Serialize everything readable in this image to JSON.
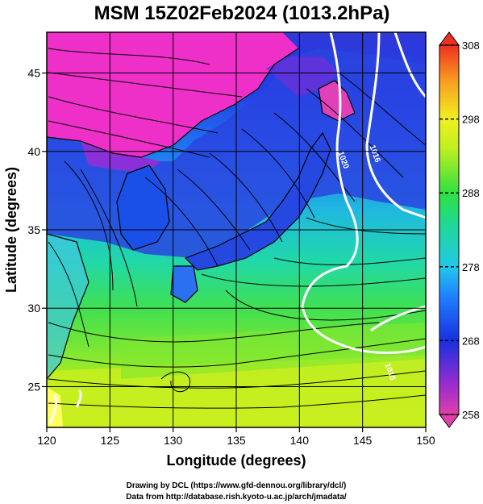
{
  "title": "MSM 15Z02Feb2024 (1013.2hPa)",
  "xlabel": "Longitude (degrees)",
  "ylabel": "Latitude  (degrees)",
  "x_ticks": [
    120,
    125,
    130,
    135,
    140,
    145,
    150
  ],
  "y_ticks": [
    25,
    30,
    35,
    40,
    45
  ],
  "x_range": [
    120,
    150
  ],
  "y_range": [
    22.4,
    47.6
  ],
  "colorbar": {
    "ticks": [
      258,
      268,
      278,
      288,
      298,
      308
    ],
    "range": [
      258,
      308
    ],
    "extend": "both"
  },
  "isobars": [
    {
      "label": "1020",
      "lon": 143.3,
      "lat": 39.4
    },
    {
      "label": "1016",
      "lon": 145.8,
      "lat": 39.8
    },
    {
      "label": "1016",
      "lon": 147.0,
      "lat": 25.9
    }
  ],
  "credits": {
    "line1": "Drawing by DCL (https://www.gfd-dennou.org/library/dcl/)",
    "line2": "Data from http://database.rish.kyoto-u.ac.jp/arch/jmadata/"
  }
}
